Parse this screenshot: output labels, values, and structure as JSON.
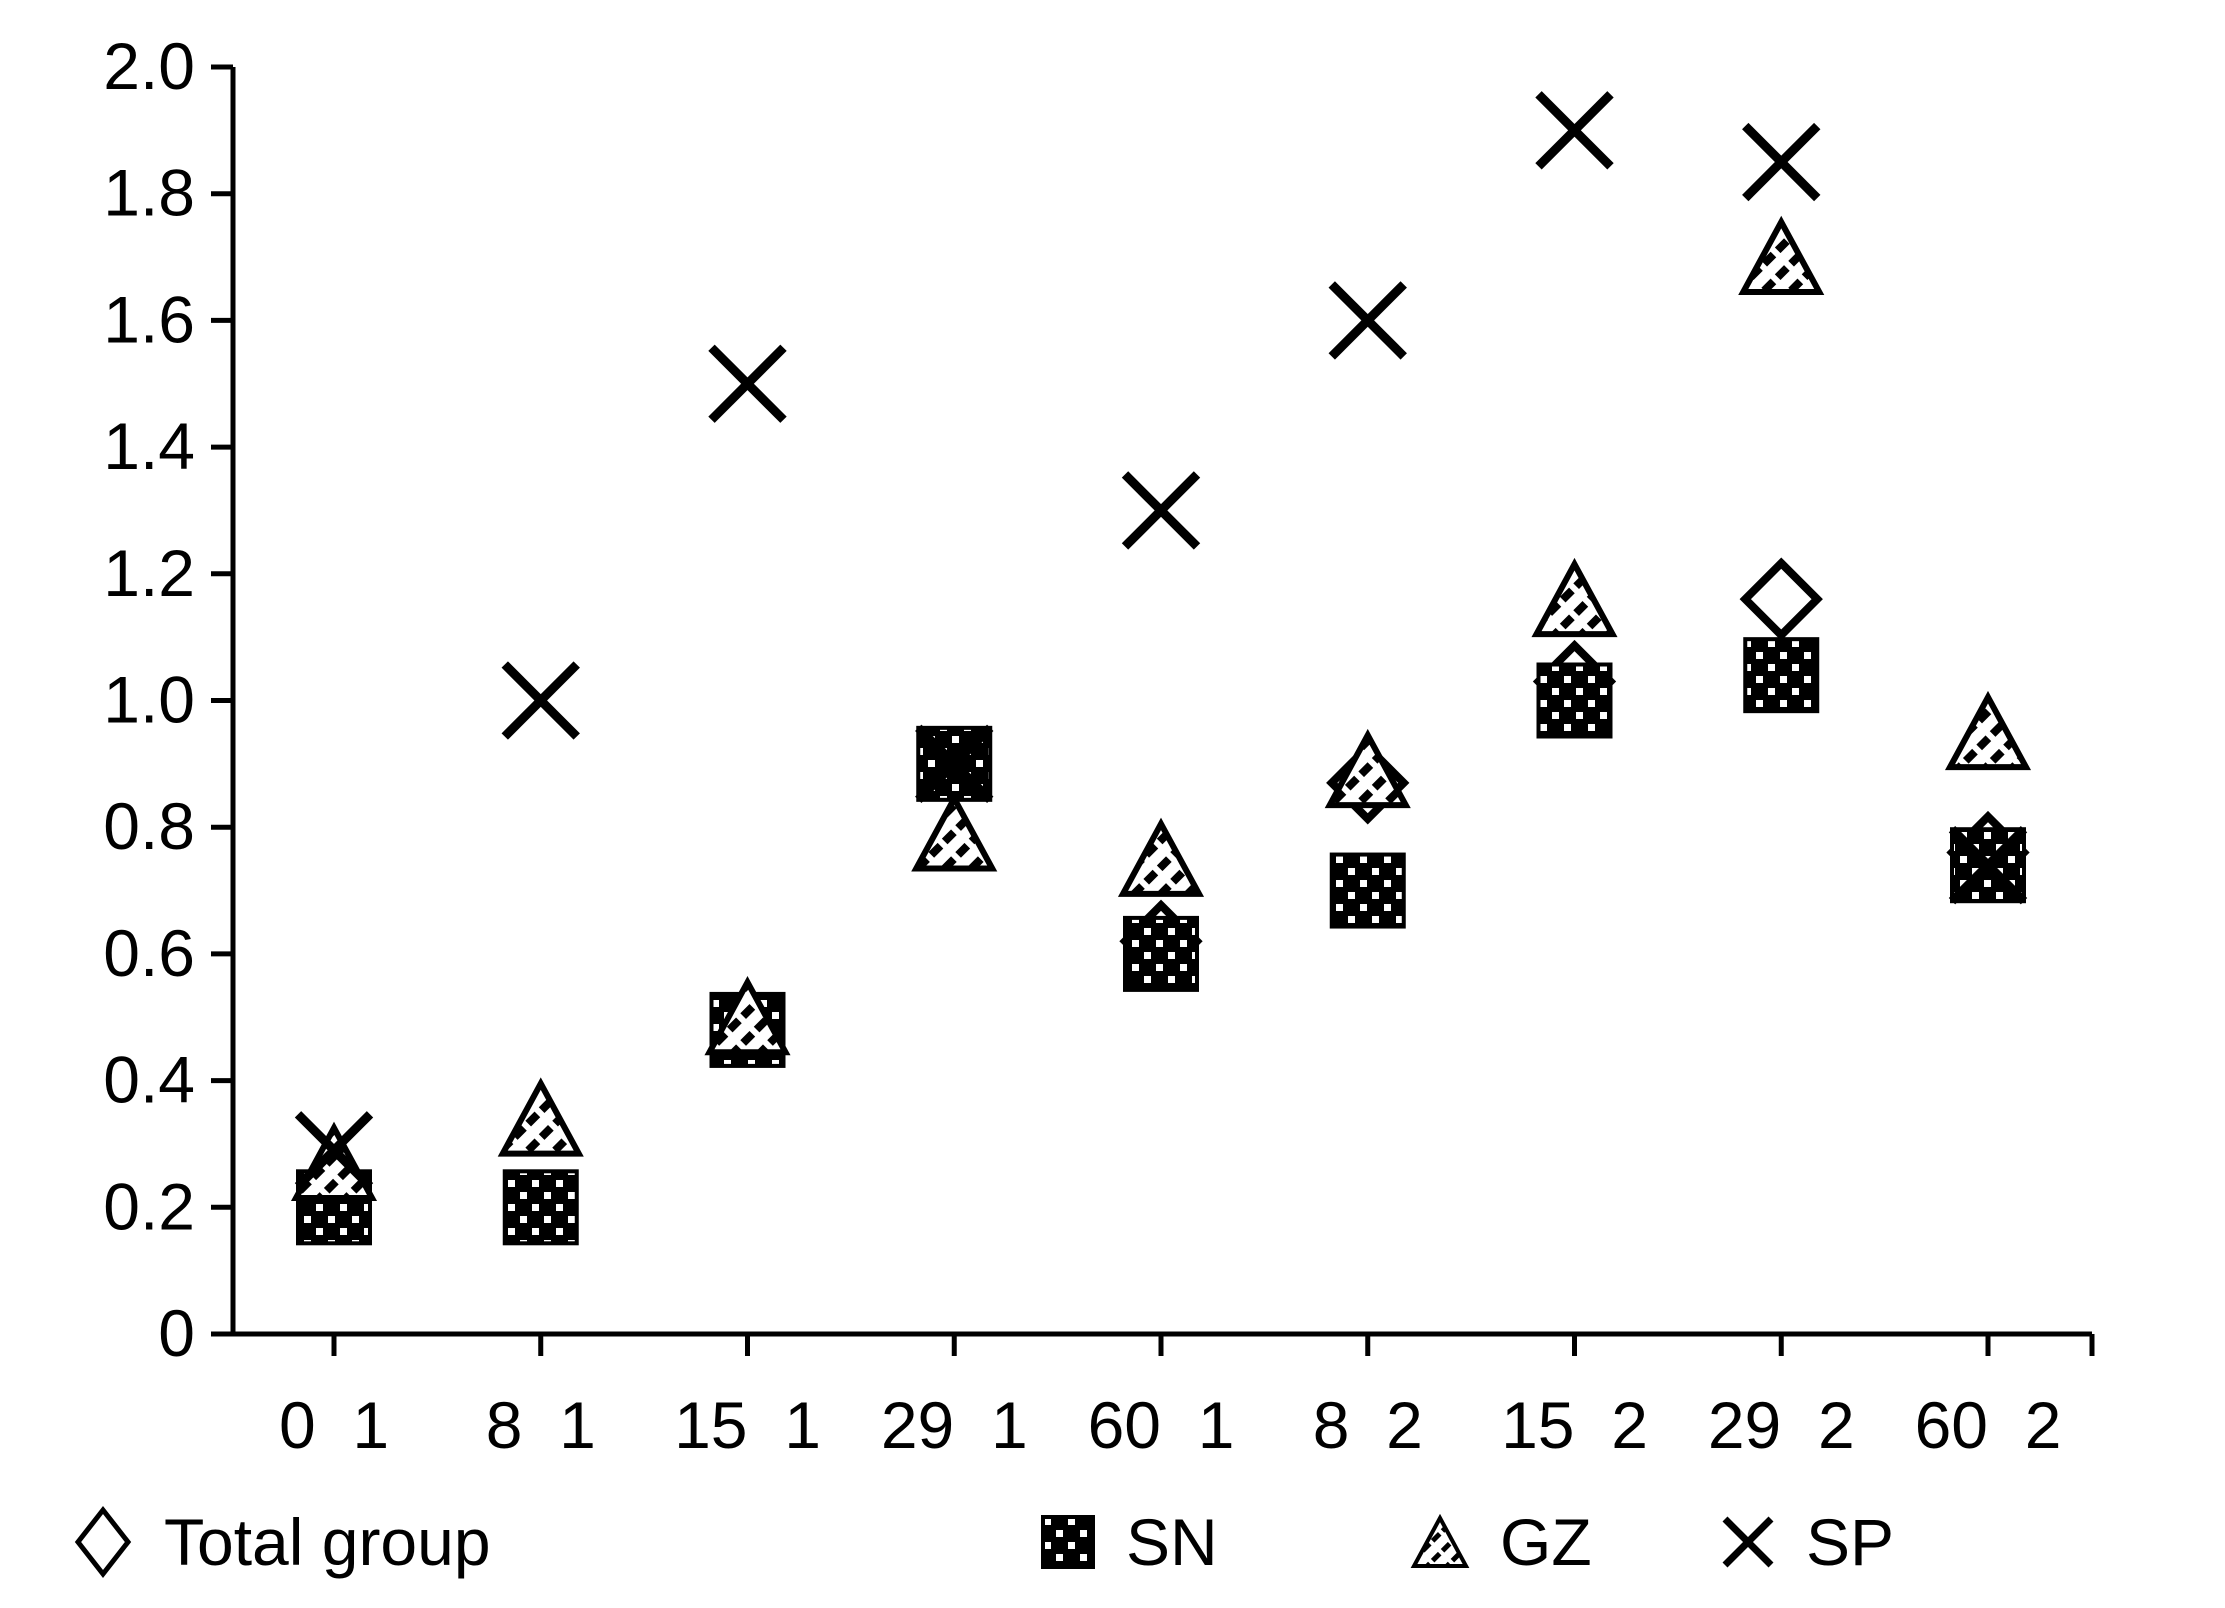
{
  "figure": {
    "background": "#ffffff",
    "ink": "#000000"
  },
  "chart_data": {
    "type": "scatter",
    "title": "",
    "xlabel": "",
    "ylabel": "",
    "categories": [
      "0_1",
      "8_1",
      "15_1",
      "29_1",
      "60_1",
      "8_2",
      "15_2",
      "29_2",
      "60_2"
    ],
    "y_tick_labels": [
      "2.0",
      "1.8",
      "1.6",
      "1.4",
      "1.2",
      "1.0",
      "0.8",
      "0.6",
      "0.4",
      "0.2",
      "0"
    ],
    "ylim": [
      0,
      2.0
    ],
    "y_step": 0.2,
    "grid": false,
    "legend_position": "bottom",
    "marker_color": "#000000",
    "series": [
      {
        "name": "Total group",
        "marker": "diamond-outline",
        "values": [
          null,
          null,
          null,
          null,
          0.62,
          0.87,
          1.03,
          1.16,
          0.76
        ]
      },
      {
        "name": "SN",
        "marker": "dotted-square",
        "values": [
          0.2,
          0.2,
          0.48,
          0.9,
          0.6,
          0.7,
          1.0,
          1.04,
          0.74
        ]
      },
      {
        "name": "GZ",
        "marker": "hatched-triangle",
        "values": [
          0.27,
          0.34,
          0.5,
          0.79,
          0.75,
          0.89,
          1.16,
          1.7,
          0.95
        ]
      },
      {
        "name": "SP",
        "marker": "x-cross",
        "values": [
          0.29,
          1.0,
          1.5,
          0.9,
          1.3,
          1.6,
          1.9,
          1.85,
          0.74
        ]
      }
    ]
  }
}
